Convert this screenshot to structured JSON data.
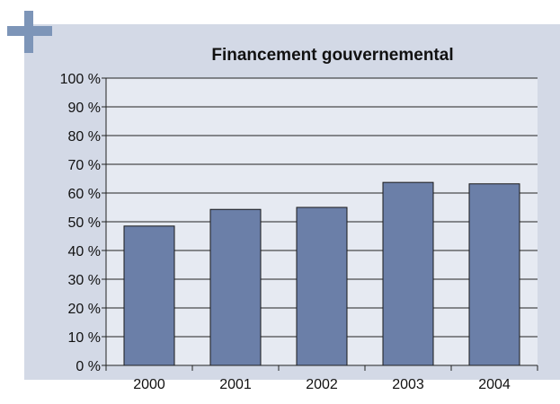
{
  "chart_data": {
    "type": "bar",
    "title": "Financement gouvernemental",
    "xlabel": "",
    "ylabel": "",
    "categories": [
      "2000",
      "2001",
      "2002",
      "2003",
      "2004"
    ],
    "values": [
      48.5,
      54.3,
      55.0,
      63.7,
      63.2
    ],
    "ylim": [
      0,
      100
    ],
    "yticks": [
      "0 %",
      "10 %",
      "20 %",
      "30 %",
      "40 %",
      "50 %",
      "60 %",
      "70 %",
      "80 %",
      "90 %",
      "100 %"
    ],
    "grid": true,
    "legend": "none"
  },
  "colors": {
    "panel_background": "#d3d9e6",
    "plot_background": "#e6eaf2",
    "bar_fill": "#6b7fa8",
    "accent_plus": "#7d95b8"
  },
  "icons": {
    "corner": "plus-icon"
  }
}
